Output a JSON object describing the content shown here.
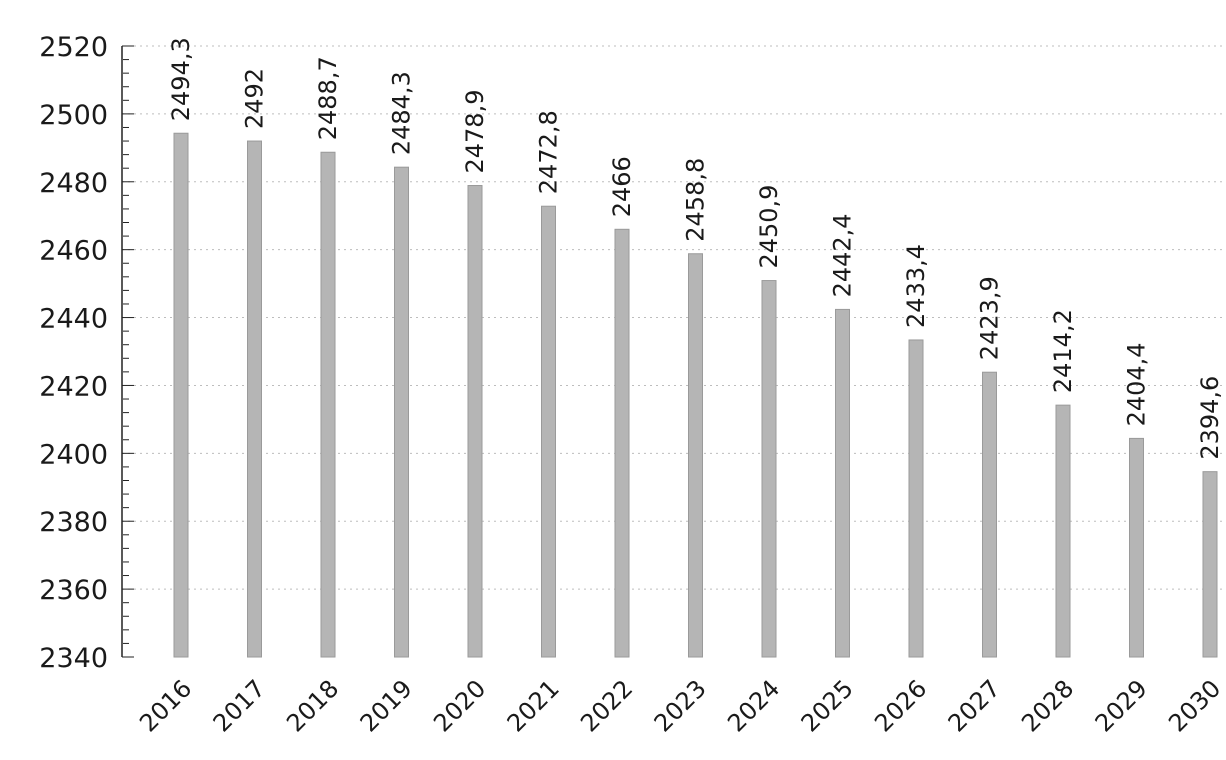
{
  "chart_data": {
    "type": "bar",
    "title": "",
    "xlabel": "",
    "ylabel": "",
    "categories": [
      "2016",
      "2017",
      "2018",
      "2019",
      "2020",
      "2021",
      "2022",
      "2023",
      "2024",
      "2025",
      "2026",
      "2027",
      "2028",
      "2029",
      "2030"
    ],
    "values": [
      2494.3,
      2492,
      2488.7,
      2484.3,
      2478.9,
      2472.8,
      2466,
      2458.8,
      2450.9,
      2442.4,
      2433.4,
      2423.9,
      2414.2,
      2404.4,
      2394.6
    ],
    "value_labels": [
      "2494,3",
      "2492",
      "2488,7",
      "2484,3",
      "2478,9",
      "2472,8",
      "2466",
      "2458,8",
      "2450,9",
      "2442,4",
      "2433,4",
      "2423,9",
      "2414,2",
      "2404,4",
      "2394,6"
    ],
    "ylim": [
      2340,
      2520
    ],
    "yticks": [
      "2340",
      "2360",
      "2380",
      "2400",
      "2420",
      "2440",
      "2460",
      "2480",
      "2500",
      "2520"
    ],
    "grid": true,
    "legend": "none",
    "bar_color": "#b5b5b5"
  }
}
